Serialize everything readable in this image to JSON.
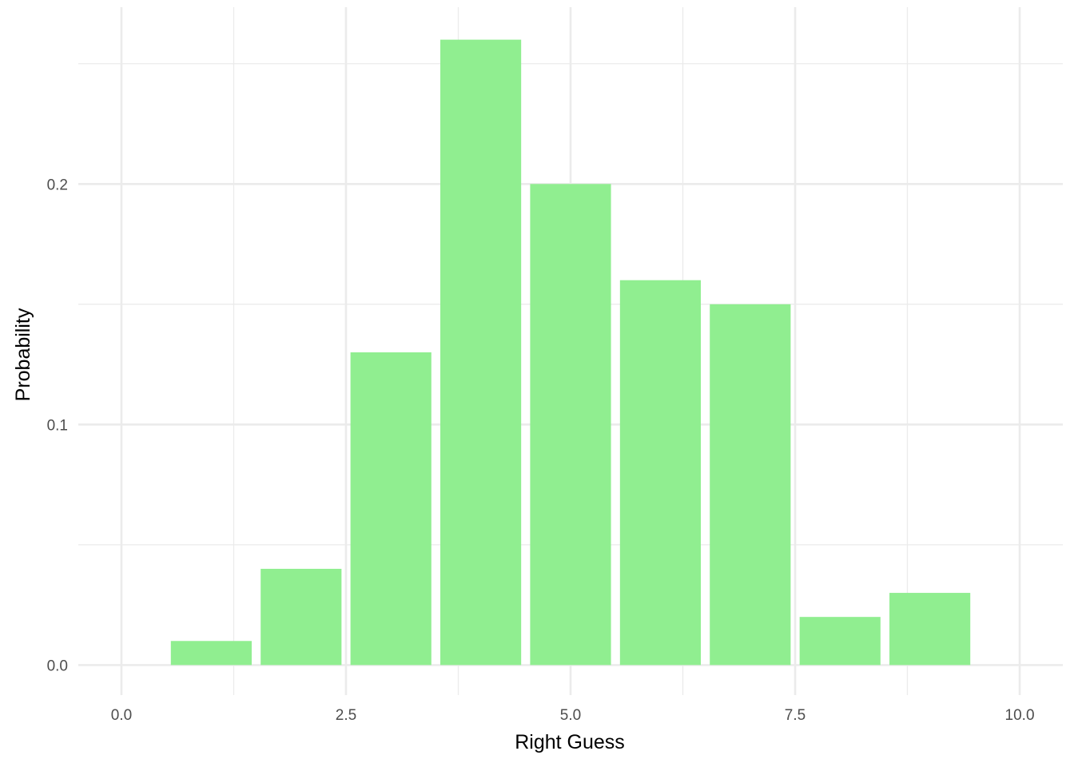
{
  "chart_data": {
    "type": "bar",
    "x": [
      1,
      2,
      3,
      4,
      5,
      6,
      7,
      8,
      9
    ],
    "values": [
      0.01,
      0.04,
      0.13,
      0.26,
      0.2,
      0.16,
      0.15,
      0.02,
      0.03
    ],
    "xlabel": "Right Guess",
    "ylabel": "Probability",
    "xlim": [
      -0.48,
      10.48
    ],
    "ylim": [
      -0.0125,
      0.2735
    ],
    "x_ticks": [
      0,
      2.5,
      5,
      7.5,
      10
    ],
    "x_tick_labels": [
      "0.0",
      "2.5",
      "5.0",
      "7.5",
      "10.0"
    ],
    "y_ticks": [
      0,
      0.1,
      0.2
    ],
    "y_tick_labels": [
      "0.0",
      "0.1",
      "0.2"
    ],
    "x_minor_ticks": [
      1.25,
      3.75,
      6.25,
      8.75
    ],
    "y_minor_ticks": [
      0.05,
      0.15,
      0.25
    ],
    "bar_width": 0.9,
    "grid": true,
    "legend": "none",
    "colors": {
      "bar": "#90ee90",
      "grid": "#ebebeb",
      "tick_text": "#4d4d4d",
      "axis_title": "#000000",
      "background": "#ffffff"
    }
  }
}
